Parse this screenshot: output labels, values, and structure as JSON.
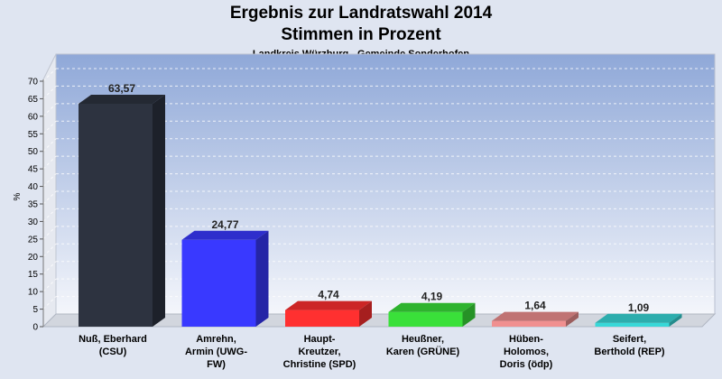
{
  "title": "Ergebnis zur Landratswahl 2014",
  "subtitle": "Stimmen in Prozent",
  "caption": "Landkreis Würzburg - Gemeinde Sonderhofen",
  "chart_data": {
    "type": "bar",
    "ylabel": "%",
    "ylim": [
      0,
      70
    ],
    "yticks": [
      0,
      5,
      10,
      15,
      20,
      25,
      30,
      35,
      40,
      45,
      50,
      55,
      60,
      65,
      70
    ],
    "grid": true,
    "categories": [
      [
        "Nuß, Eberhard",
        "(CSU)"
      ],
      [
        "Amrehn,",
        "Armin (UWG-",
        "FW)"
      ],
      [
        "Haupt-",
        "Kreutzer,",
        "Christine (SPD)"
      ],
      [
        "Heußner,",
        "Karen (GRÜNE)"
      ],
      [
        "Hüben-",
        "Holomos,",
        "Doris (ödp)"
      ],
      [
        "Seifert,",
        "Berthold (REP)"
      ]
    ],
    "values": [
      63.57,
      24.77,
      4.74,
      4.19,
      1.64,
      1.09
    ],
    "value_labels": [
      "63,57",
      "24,77",
      "4,74",
      "4,19",
      "1,64",
      "1,09"
    ],
    "colors": [
      "#2d3340",
      "#3939ff",
      "#ff3030",
      "#3ae03a",
      "#f09090",
      "#38d8d8"
    ]
  }
}
